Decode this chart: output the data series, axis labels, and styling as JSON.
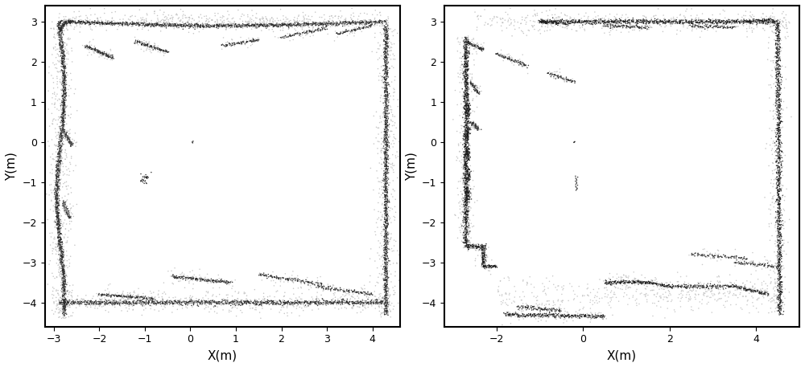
{
  "fig_width": 10.0,
  "fig_height": 4.57,
  "dpi": 100,
  "background_color": "#ffffff",
  "plot1": {
    "xlim": [
      -3.2,
      4.6
    ],
    "ylim": [
      -4.6,
      3.4
    ],
    "xticks": [
      -3,
      -2,
      -1,
      0,
      1,
      2,
      3,
      4
    ],
    "yticks": [
      -4,
      -3,
      -2,
      -1,
      0,
      1,
      2,
      3
    ],
    "xlabel": "X(m)",
    "ylabel": "Y(m)"
  },
  "plot2": {
    "xlim": [
      -3.2,
      5.0
    ],
    "ylim": [
      -4.6,
      3.4
    ],
    "xticks": [
      -2,
      0,
      2,
      4
    ],
    "yticks": [
      -4,
      -3,
      -2,
      -1,
      0,
      1,
      2,
      3
    ],
    "xlabel": "X(m)",
    "ylabel": "Y(m)"
  }
}
